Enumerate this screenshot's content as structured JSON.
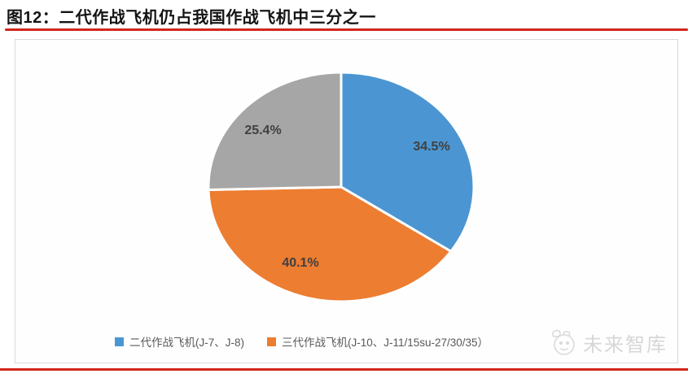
{
  "page": {
    "title": "图12：二代作战飞机仍占我国作战飞机中三分之一",
    "accent_color": "#d2261b",
    "watermark_text": "未来智库"
  },
  "chart_data": {
    "type": "pie",
    "title": "图12：二代作战飞机仍占我国作战飞机中三分之一",
    "direction": "clockwise",
    "start_angle_deg": 0,
    "legend_position": "bottom",
    "slices": [
      {
        "label": "二代作战飞机(J-7、J-8)",
        "value": 34.5,
        "value_label": "34.5%",
        "color": "#4b96d2"
      },
      {
        "label": "三代作战飞机(J-10、J-11/15su-27/30/35）",
        "value": 40.1,
        "value_label": "40.1%",
        "color": "#ed7d31"
      },
      {
        "label": "",
        "value": 25.4,
        "value_label": "25.4%",
        "color": "#a6a6a6"
      }
    ],
    "legend": [
      {
        "label": "二代作战飞机(J-7、J-8)"
      },
      {
        "label": "三代作战飞机(J-10、J-11/15su-27/30/35）"
      }
    ]
  }
}
